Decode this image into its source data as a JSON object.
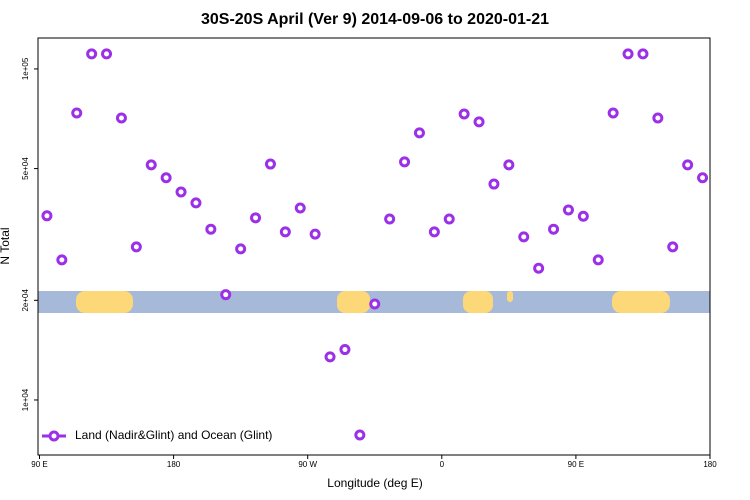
{
  "chart_data": {
    "type": "scatter",
    "title": "30S-20S April (Ver 9)   2014-09-06 to 2020-01-21",
    "x_label": "Longitude (deg E)",
    "y_label": "N Total",
    "x": [
      95,
      105,
      115,
      125,
      135,
      145,
      155,
      165,
      175,
      185,
      195,
      205,
      215,
      225,
      235,
      245,
      255,
      265,
      275,
      285,
      295,
      305,
      315,
      325,
      335,
      345,
      355,
      365,
      375,
      385,
      395,
      405,
      415,
      425,
      435,
      445,
      455,
      465,
      475,
      485,
      495,
      505,
      515,
      525,
      535
    ],
    "series": [
      {
        "name": "Land (Nadir&Glint) and Ocean (Glint)",
        "color": "#9b30e8",
        "values": [
          36000,
          26500,
          73600,
          111000,
          111000,
          71100,
          29000,
          51300,
          46900,
          42500,
          39400,
          32800,
          20800,
          28600,
          35500,
          51600,
          32200,
          38000,
          31700,
          13500,
          14200,
          7840,
          19500,
          35200,
          52400,
          64100,
          32200,
          35200,
          73100,
          69200,
          44900,
          51300,
          31100,
          25000,
          32800,
          37500,
          35900,
          26500,
          73600,
          111000,
          111000,
          71100,
          29000,
          51300,
          46900
        ]
      }
    ],
    "xlim": [
      89,
      540
    ],
    "xticks": [
      {
        "value": 90,
        "label": "90 E"
      },
      180,
      {
        "value": 270,
        "label": "90 W"
      },
      {
        "value": 360,
        "label": "0"
      },
      {
        "value": 450,
        "label": "90 E"
      },
      {
        "value": 540,
        "label": "180"
      }
    ],
    "ylim": [
      6820,
      124000
    ],
    "yticks": [
      {
        "value": 10000,
        "label": "1e+04"
      },
      {
        "value": 20000,
        "label": "2e+04"
      },
      {
        "value": 50000,
        "label": "5e+04"
      },
      {
        "value": 100000,
        "label": "1e+05"
      }
    ],
    "log_y": true,
    "legend": "bottom-left"
  }
}
